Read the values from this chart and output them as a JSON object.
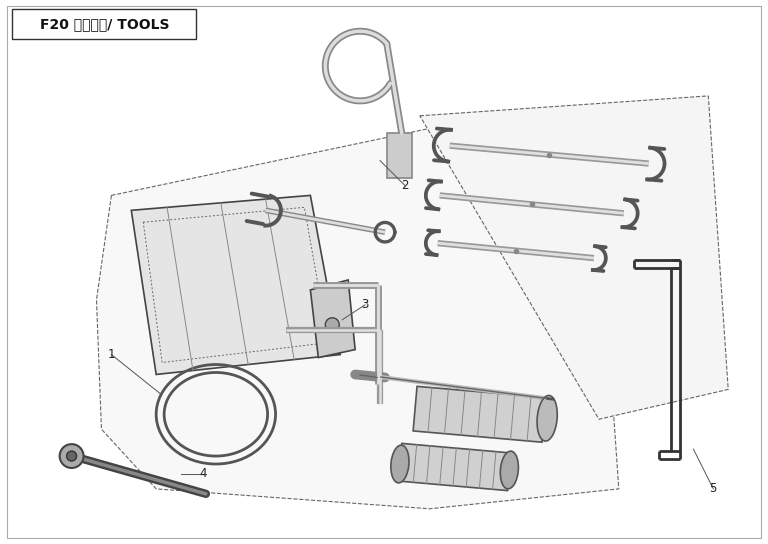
{
  "title": "F20 随车工具/ TOOLS",
  "bg_color": "#ffffff",
  "border_color": "#222222",
  "line_color": "#333333",
  "label_color": "#222222",
  "title_fontsize": 10,
  "label_fontsize": 8.5,
  "fig_width": 7.68,
  "fig_height": 5.44
}
